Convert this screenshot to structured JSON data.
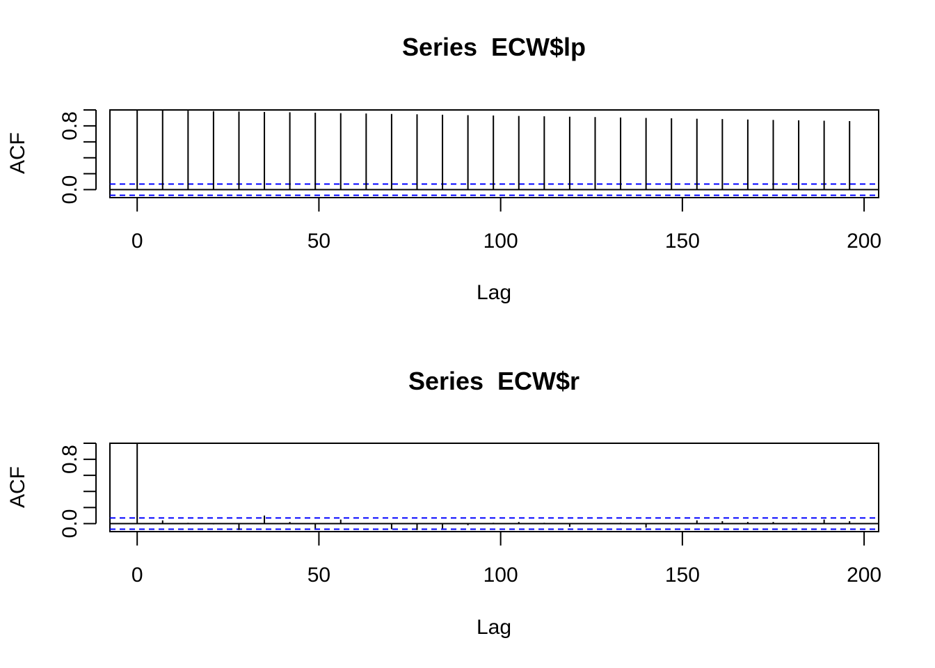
{
  "chart_data": [
    {
      "type": "bar",
      "title": "Series  ECW$lp",
      "xlabel": "Lag",
      "ylabel": "ACF",
      "xlim": [
        -7.5,
        204
      ],
      "ylim": [
        -0.1,
        1.0
      ],
      "x_ticks": [
        "0",
        "50",
        "100",
        "150",
        "200"
      ],
      "y_tick_labels": [
        "0.0",
        "0.8"
      ],
      "y_minor_ticks": [
        0.0,
        0.2,
        0.4,
        0.6,
        0.8,
        1.0
      ],
      "conf_limit": 0.07,
      "conf_color": "#0000ff",
      "lags": [
        0,
        7,
        14,
        21,
        28,
        35,
        42,
        49,
        56,
        63,
        70,
        77,
        84,
        91,
        98,
        105,
        112,
        119,
        126,
        133,
        140,
        147,
        154,
        161,
        168,
        175,
        182,
        189,
        196
      ],
      "values": [
        1.0,
        0.995,
        0.99,
        0.985,
        0.98,
        0.975,
        0.97,
        0.965,
        0.96,
        0.955,
        0.95,
        0.945,
        0.94,
        0.935,
        0.93,
        0.925,
        0.92,
        0.915,
        0.91,
        0.905,
        0.9,
        0.895,
        0.89,
        0.885,
        0.88,
        0.875,
        0.87,
        0.865,
        0.86
      ],
      "grid": false
    },
    {
      "type": "bar",
      "title": "Series  ECW$r",
      "xlabel": "Lag",
      "ylabel": "ACF",
      "xlim": [
        -7.5,
        204
      ],
      "ylim": [
        -0.1,
        1.0
      ],
      "x_ticks": [
        "0",
        "50",
        "100",
        "150",
        "200"
      ],
      "y_tick_labels": [
        "0.0",
        "0.8"
      ],
      "y_minor_ticks": [
        0.0,
        0.2,
        0.4,
        0.6,
        0.8,
        1.0
      ],
      "conf_limit": 0.07,
      "conf_color": "#0000ff",
      "lags": [
        0,
        7,
        14,
        21,
        28,
        35,
        42,
        49,
        56,
        63,
        70,
        77,
        84,
        91,
        98,
        105,
        112,
        119,
        126,
        133,
        140,
        147,
        154,
        161,
        168,
        175,
        182,
        189,
        196
      ],
      "values": [
        1.0,
        0.04,
        0.01,
        -0.01,
        -0.08,
        0.1,
        0.02,
        -0.06,
        0.05,
        0.0,
        -0.07,
        -0.08,
        -0.06,
        -0.02,
        0.01,
        0.02,
        0.01,
        -0.04,
        0.0,
        0.01,
        -0.05,
        -0.01,
        0.04,
        0.03,
        0.02,
        0.02,
        0.01,
        0.05,
        0.03
      ],
      "grid": false
    }
  ]
}
